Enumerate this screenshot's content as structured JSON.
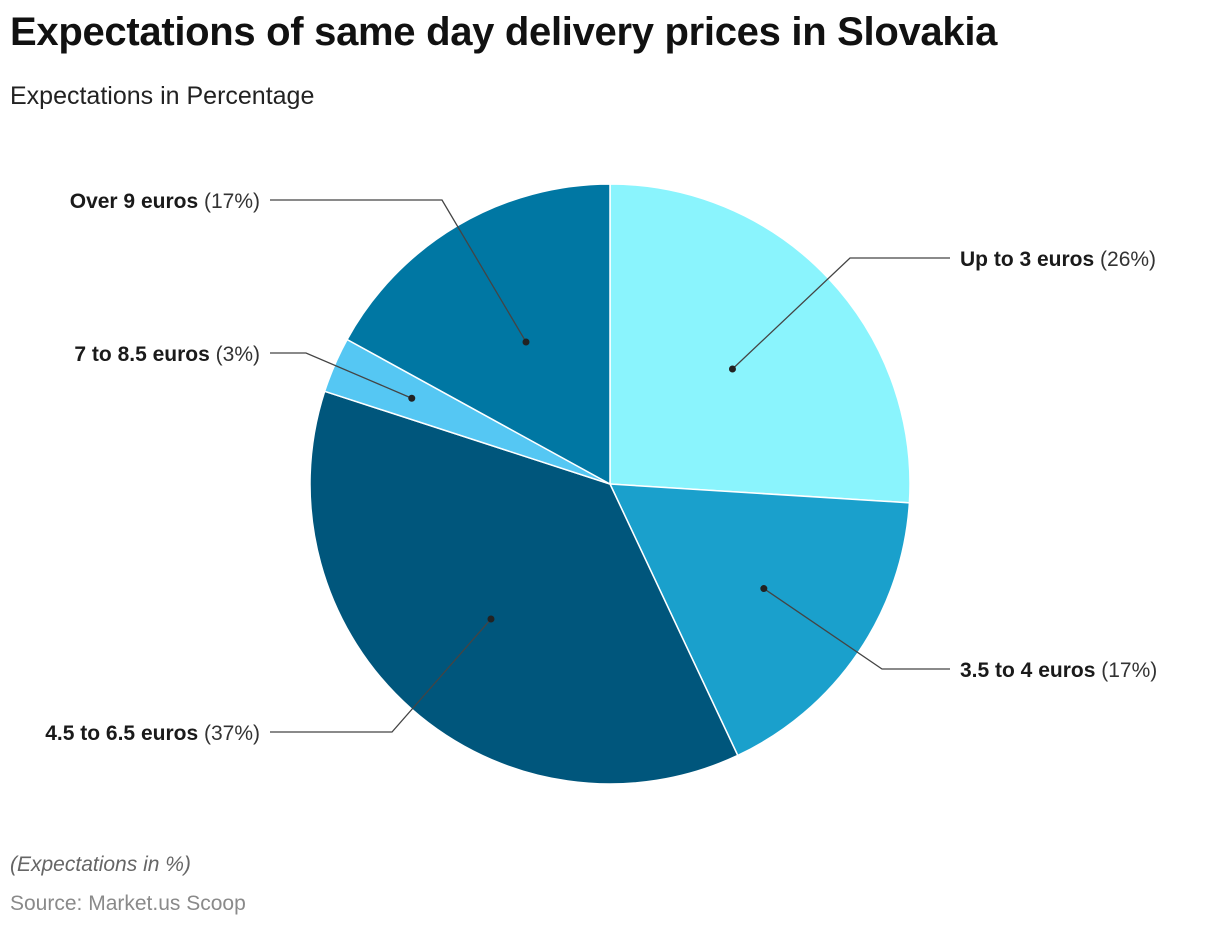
{
  "header": {
    "title": "Expectations of same day delivery prices in Slovakia",
    "subtitle": "Expectations in Percentage"
  },
  "footer": {
    "note": "(Expectations in %)",
    "source": "Source: Market.us Scoop"
  },
  "chart_data": {
    "type": "pie",
    "title": "Expectations of same day delivery prices in Slovakia",
    "subtitle": "Expectations in Percentage",
    "unit": "%",
    "slices": [
      {
        "label": "Up to 3 euros",
        "value": 26,
        "display": "(26%)",
        "color": "#8af4fd"
      },
      {
        "label": "3.5 to 4 euros",
        "value": 17,
        "display": "(17%)",
        "color": "#1aa0cc"
      },
      {
        "label": "4.5 to 6.5 euros",
        "value": 37,
        "display": "(37%)",
        "color": "#00567c"
      },
      {
        "label": "7 to 8.5 euros",
        "value": 3,
        "display": "(3%)",
        "color": "#55c7f3"
      },
      {
        "label": "Over 9 euros",
        "value": 17,
        "display": "(17%)",
        "color": "#0077a3"
      }
    ],
    "start": "12 o'clock",
    "direction": "clockwise",
    "legend": "none"
  }
}
